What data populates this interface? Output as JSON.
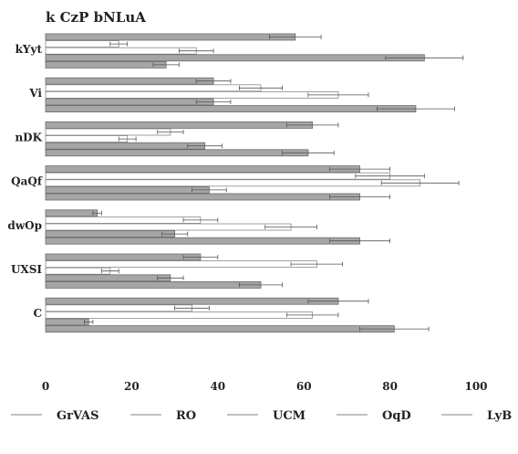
{
  "chart_data": {
    "type": "bar",
    "orientation": "horizontal",
    "title": "k CzP bNLuA",
    "categories": [
      "kYyt",
      "Vi",
      "nDK",
      "QaQf",
      "dwOp",
      "UXSI",
      "C"
    ],
    "xlim": [
      0,
      100
    ],
    "xticks": [
      0,
      20,
      40,
      60,
      80,
      100
    ],
    "grid": false,
    "legend_position": "bottom",
    "series": [
      {
        "name": "GrVAS",
        "color": "#a6a6a6",
        "values": [
          58,
          39,
          62,
          73,
          12,
          36,
          68
        ],
        "errors": [
          6,
          4,
          6,
          7,
          1,
          4,
          7
        ]
      },
      {
        "name": "RO",
        "color": "#ffffff",
        "values": [
          17,
          50,
          29,
          80,
          36,
          63,
          34
        ],
        "errors": [
          2,
          5,
          3,
          8,
          4,
          6,
          4
        ]
      },
      {
        "name": "UCM",
        "color": "#ffffff",
        "values": [
          35,
          68,
          19,
          87,
          57,
          15,
          62
        ],
        "errors": [
          4,
          7,
          2,
          9,
          6,
          2,
          6
        ]
      },
      {
        "name": "OqD",
        "color": "#a6a6a6",
        "values": [
          88,
          39,
          37,
          38,
          30,
          29,
          10
        ],
        "errors": [
          9,
          4,
          4,
          4,
          3,
          3,
          1
        ]
      },
      {
        "name": "LyB",
        "color": "#a6a6a6",
        "values": [
          28,
          86,
          61,
          73,
          73,
          50,
          81
        ],
        "errors": [
          3,
          9,
          6,
          7,
          7,
          5,
          8
        ]
      }
    ]
  }
}
